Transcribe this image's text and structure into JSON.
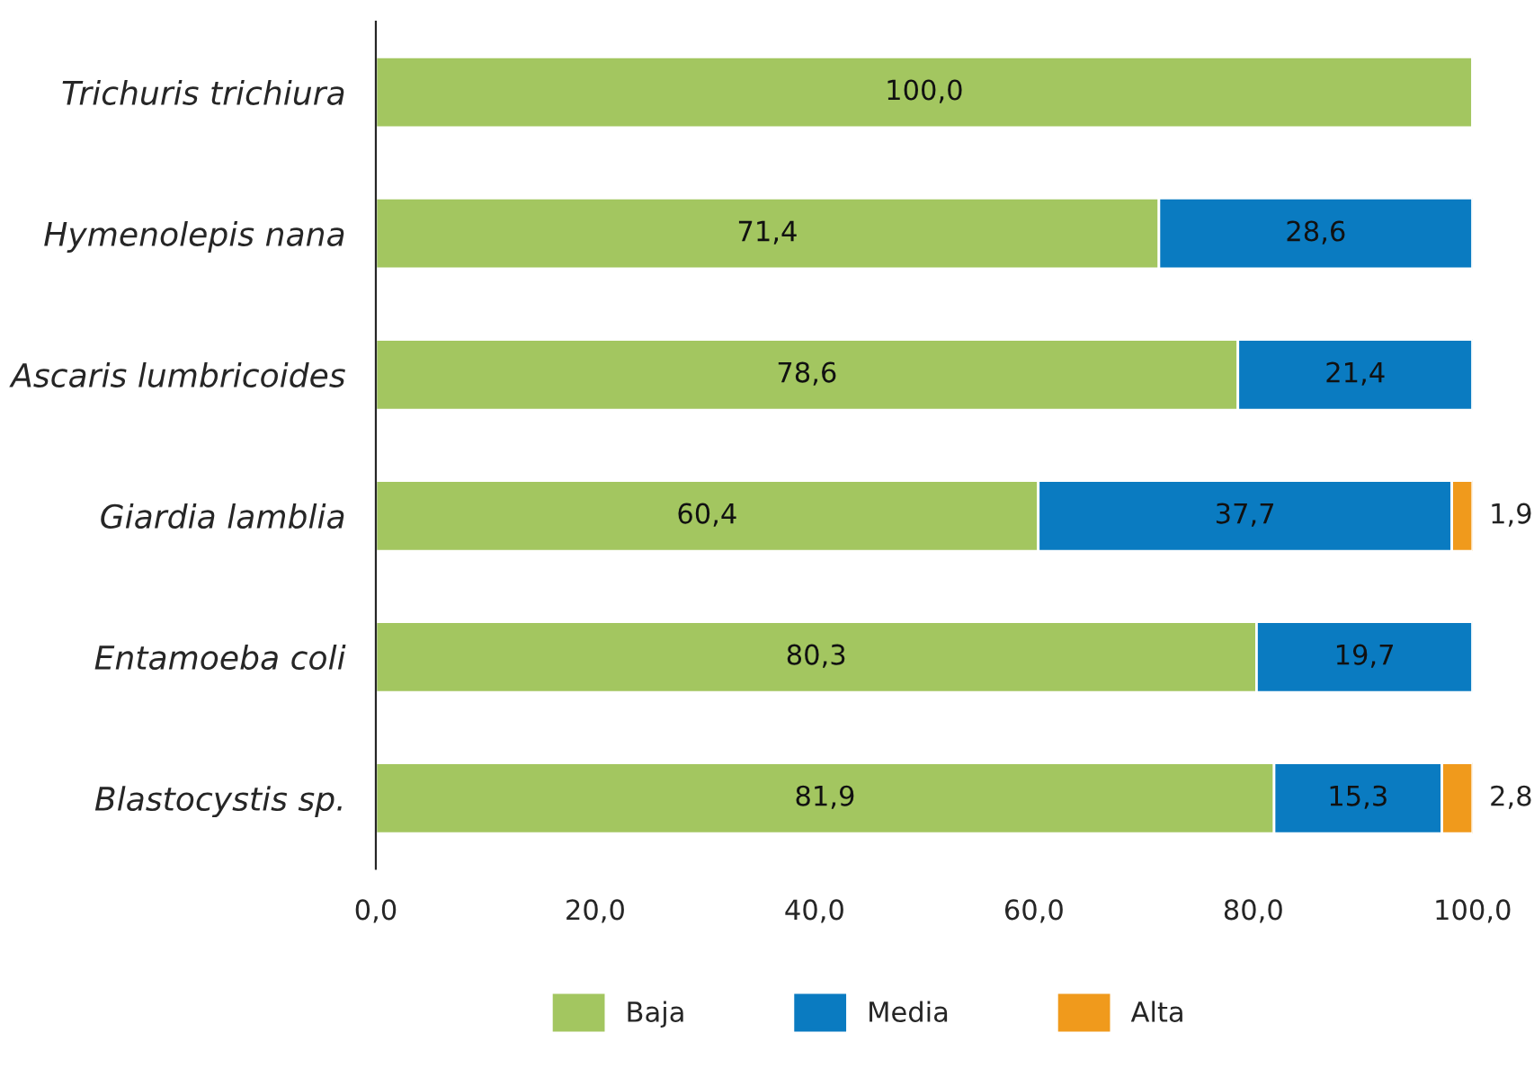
{
  "chart_data": {
    "type": "bar",
    "orientation": "horizontal",
    "stacked": true,
    "categories": [
      "Trichuris trichiura",
      "Hymenolepis nana",
      "Ascaris lumbricoides",
      "Giardia lamblia",
      "Entamoeba coli",
      "Blastocystis sp."
    ],
    "series": [
      {
        "name": "Baja",
        "color": "#a3c660",
        "values": [
          100.0,
          71.4,
          78.6,
          60.4,
          80.3,
          81.9
        ],
        "value_labels": [
          "100,0",
          "71,4",
          "78,6",
          "60,4",
          "80,3",
          "81,9"
        ]
      },
      {
        "name": "Media",
        "color": "#0a7bc1",
        "values": [
          null,
          28.6,
          21.4,
          37.7,
          19.7,
          15.3
        ],
        "value_labels": [
          null,
          "28,6",
          "21,4",
          "37,7",
          "19,7",
          "15,3"
        ]
      },
      {
        "name": "Alta",
        "color": "#f09a1c",
        "values": [
          null,
          null,
          null,
          1.9,
          null,
          2.8
        ],
        "value_labels": [
          null,
          null,
          null,
          "1,9",
          null,
          "2,8"
        ]
      }
    ],
    "xlim": [
      0,
      100
    ],
    "xticks": [
      {
        "value": 0,
        "label": "0,0"
      },
      {
        "value": 20,
        "label": "20,0"
      },
      {
        "value": 40,
        "label": "40,0"
      },
      {
        "value": 60,
        "label": "60,0"
      },
      {
        "value": 80,
        "label": "80,0"
      },
      {
        "value": 100,
        "label": "100,0"
      }
    ],
    "legend": "bottom",
    "grid": false
  }
}
